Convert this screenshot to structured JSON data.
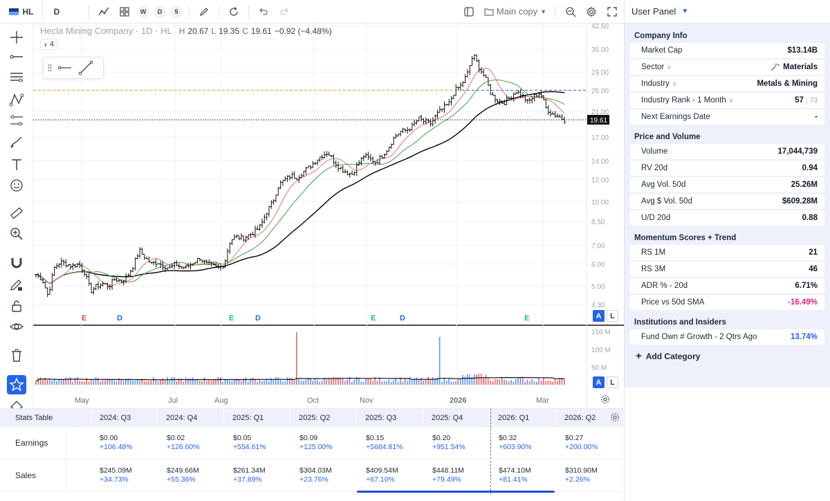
{
  "toolbar": {
    "symbol": "HL",
    "interval": "D",
    "circle_buttons": [
      "W",
      "D",
      "5"
    ],
    "layout_name": "Main copy"
  },
  "legend": {
    "company": "Hecla Mining Company · 1D · HL",
    "open_label": "H",
    "high": "20.67",
    "low_label": "L",
    "low": "19.35",
    "close_label": "C",
    "close": "19.61",
    "change": "−0.92 (−4.48%)",
    "collapse": "4"
  },
  "chart_data": {
    "type": "candlestick",
    "price_axis_ticks": [
      "42.50",
      "35.00",
      "29.00",
      "25.00",
      "21.00",
      "17.00",
      "14.00",
      "12.00",
      "10.00",
      "8.50",
      "7.00",
      "6.00",
      "5.00",
      "4.30"
    ],
    "last_price_label": "19.61",
    "volume_axis_ticks": [
      "150 M",
      "100 M",
      "50 M"
    ],
    "x_labels": [
      "May",
      "Jul",
      "Aug",
      "Oct",
      "Nov",
      "2026",
      "Mar"
    ],
    "earnings_markers": [
      {
        "letter": "E",
        "kind": "earnings"
      },
      {
        "letter": "D",
        "kind": "dividend"
      },
      {
        "letter": "E",
        "kind": "earnings"
      },
      {
        "letter": "D",
        "kind": "dividend"
      },
      {
        "letter": "E",
        "kind": "earnings"
      },
      {
        "letter": "D",
        "kind": "dividend"
      },
      {
        "letter": "E",
        "kind": "earnings"
      }
    ],
    "price_path": [
      5.5,
      5.3,
      4.6,
      5.8,
      6.1,
      6.0,
      5.9,
      6.0,
      5.6,
      4.8,
      5.0,
      5.1,
      5.0,
      5.3,
      5.2,
      5.4,
      5.9,
      6.7,
      6.3,
      6.0,
      6.1,
      5.9,
      5.8,
      6.0,
      5.8,
      5.9,
      6.1,
      6.3,
      6.0,
      5.9,
      5.8,
      6.0,
      7.3,
      7.5,
      7.4,
      7.6,
      7.8,
      8.2,
      9.2,
      10.0,
      11.5,
      12.0,
      12.4,
      12.2,
      12.8,
      13.3,
      14.0,
      14.6,
      15.0,
      14.0,
      13.2,
      12.8,
      12.5,
      13.6,
      14.6,
      14.2,
      13.8,
      14.6,
      15.6,
      17.0,
      17.8,
      18.0,
      18.6,
      19.8,
      19.3,
      19.0,
      20.5,
      21.5,
      22.4,
      25.0,
      26.0,
      28.5,
      33.5,
      30.0,
      27.5,
      24.0,
      23.0,
      22.5,
      23.5,
      24.8,
      24.0,
      22.6,
      23.8,
      24.5,
      21.5,
      20.6,
      20.2,
      19.61
    ],
    "series": [
      {
        "name": "price",
        "color": "#111111"
      },
      {
        "name": "sma10",
        "color": "#e57373"
      },
      {
        "name": "sma21",
        "color": "#43a047"
      },
      {
        "name": "sma50",
        "color": "#000000"
      }
    ],
    "volume_spikes": [
      {
        "label": "Oct spike",
        "value": 148
      },
      {
        "label": "Dec spike",
        "value": 135
      }
    ],
    "reference_lines": [
      {
        "name": "horizontal level",
        "value": 25.0,
        "color": "#f59e0b"
      },
      {
        "name": "last price",
        "value": 19.61,
        "color": "#111111"
      }
    ]
  },
  "stats_table": {
    "title": "Stats Table",
    "quarters": [
      "2024: Q3",
      "2024: Q4",
      "2025: Q1",
      "2025: Q2",
      "2025: Q3",
      "2025: Q4",
      "2026: Q1",
      "2026: Q2"
    ],
    "rows": [
      {
        "label": "Earnings",
        "values": [
          "$0.00",
          "$0.02",
          "$0.05",
          "$0.09",
          "$0.15",
          "$0.20",
          "$0.32",
          "$0.27"
        ],
        "changes": [
          "+106.48%",
          "+126.60%",
          "+554.61%",
          "+125.00%",
          "+5684.81%",
          "+951.54%",
          "+603.90%",
          "+200.00%"
        ]
      },
      {
        "label": "Sales",
        "values": [
          "$245.09M",
          "$249.66M",
          "$261.34M",
          "$304.03M",
          "$409.54M",
          "$448.11M",
          "$474.10M",
          "$310.90M"
        ],
        "changes": [
          "+34.73%",
          "+55.36%",
          "+37.89%",
          "+23.76%",
          "+67.10%",
          "+79.49%",
          "+81.41%",
          "+2.26%"
        ]
      }
    ]
  },
  "panel": {
    "title": "User Panel",
    "add_category": "Add Category",
    "sections": [
      {
        "title": "Company Info",
        "rows": [
          {
            "key": "Market Cap",
            "value": "$13.14B"
          },
          {
            "key": "Sector",
            "value": "Materials",
            "dropdown": true
          },
          {
            "key": "Industry",
            "value": "Metals & Mining",
            "dropdown": true
          },
          {
            "key": "Industry Rank - 1 Month",
            "value": "57",
            "extra": "73",
            "dropdown": true
          },
          {
            "key": "Next Earnings Date",
            "value": "-"
          }
        ]
      },
      {
        "title": "Price and Volume",
        "rows": [
          {
            "key": "Volume",
            "value": "17,044,739"
          },
          {
            "key": "RV 20d",
            "value": "0.94"
          },
          {
            "key": "Avg Vol. 50d",
            "value": "25.26M"
          },
          {
            "key": "Avg $ Vol. 50d",
            "value": "$609.28M"
          },
          {
            "key": "U/D 20d",
            "value": "0.88"
          }
        ]
      },
      {
        "title": "Momentum Scores + Trend",
        "rows": [
          {
            "key": "RS 1M",
            "value": "21"
          },
          {
            "key": "RS 3M",
            "value": "46"
          },
          {
            "key": "ADR % - 20d",
            "value": "6.71%"
          },
          {
            "key": "Price vs 50d SMA",
            "value": "-16.49%",
            "tone": "neg"
          }
        ]
      },
      {
        "title": "Institutions and Insiders",
        "rows": [
          {
            "key": "Fund Own # Growth - 2 Qtrs Ago",
            "value": "13.74%",
            "tone": "blue"
          }
        ]
      }
    ]
  },
  "badges": {
    "a": "A",
    "l": "L"
  }
}
